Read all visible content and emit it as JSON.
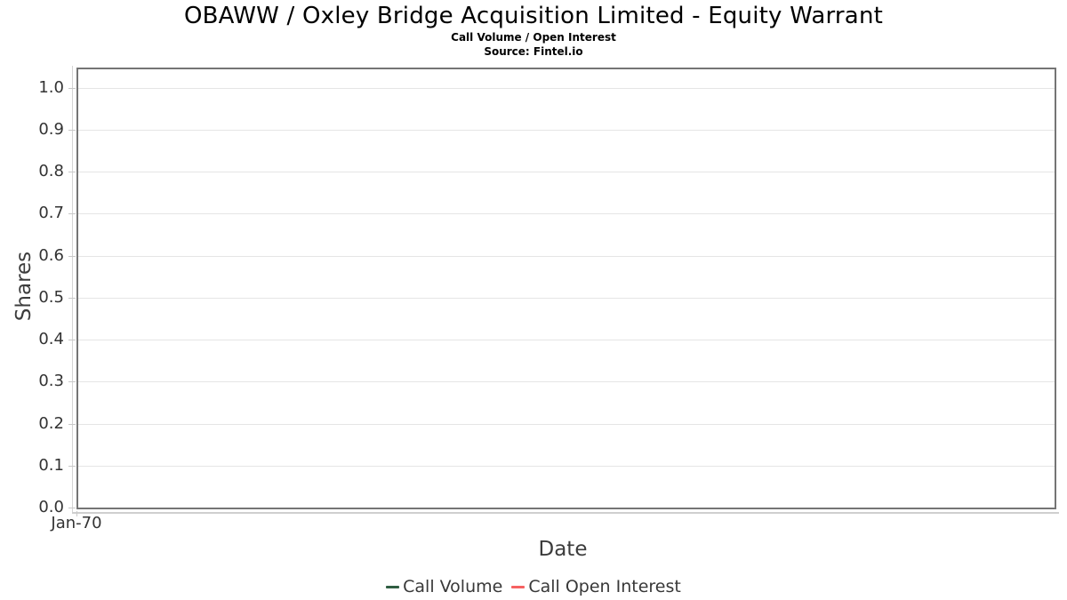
{
  "header": {
    "title": "OBAWW / Oxley Bridge Acquisition Limited - Equity Warrant",
    "subtitle": "Call Volume / Open Interest",
    "source": "Source: Fintel.io"
  },
  "chart_data": {
    "type": "line",
    "title": "OBAWW / Oxley Bridge Acquisition Limited - Equity Warrant",
    "subtitle": "Call Volume / Open Interest",
    "source": "Source: Fintel.io",
    "xlabel": "Date",
    "ylabel": "Shares",
    "x_ticks": [
      "Jan-70"
    ],
    "y_ticks": [
      0.0,
      0.1,
      0.2,
      0.3,
      0.4,
      0.5,
      0.6,
      0.7,
      0.8,
      0.9,
      1.0
    ],
    "ylim": [
      0.0,
      1.044
    ],
    "grid": true,
    "legend_position": "bottom-center",
    "series": [
      {
        "name": "Call Volume",
        "color": "#2f5d42",
        "x": [],
        "values": []
      },
      {
        "name": "Call Open Interest",
        "color": "#f66161",
        "x": [],
        "values": []
      }
    ]
  },
  "colors": {
    "background": "#ffffff",
    "title_text": "#000000",
    "axis_text": "#333333",
    "axis_title_text": "#3c3c3c",
    "plot_border": "#757575",
    "gridline": "#e5e5e5",
    "tick_mark": "#c9c9c9",
    "call_volume": "#2f5d42",
    "call_open_interest": "#f66161"
  }
}
